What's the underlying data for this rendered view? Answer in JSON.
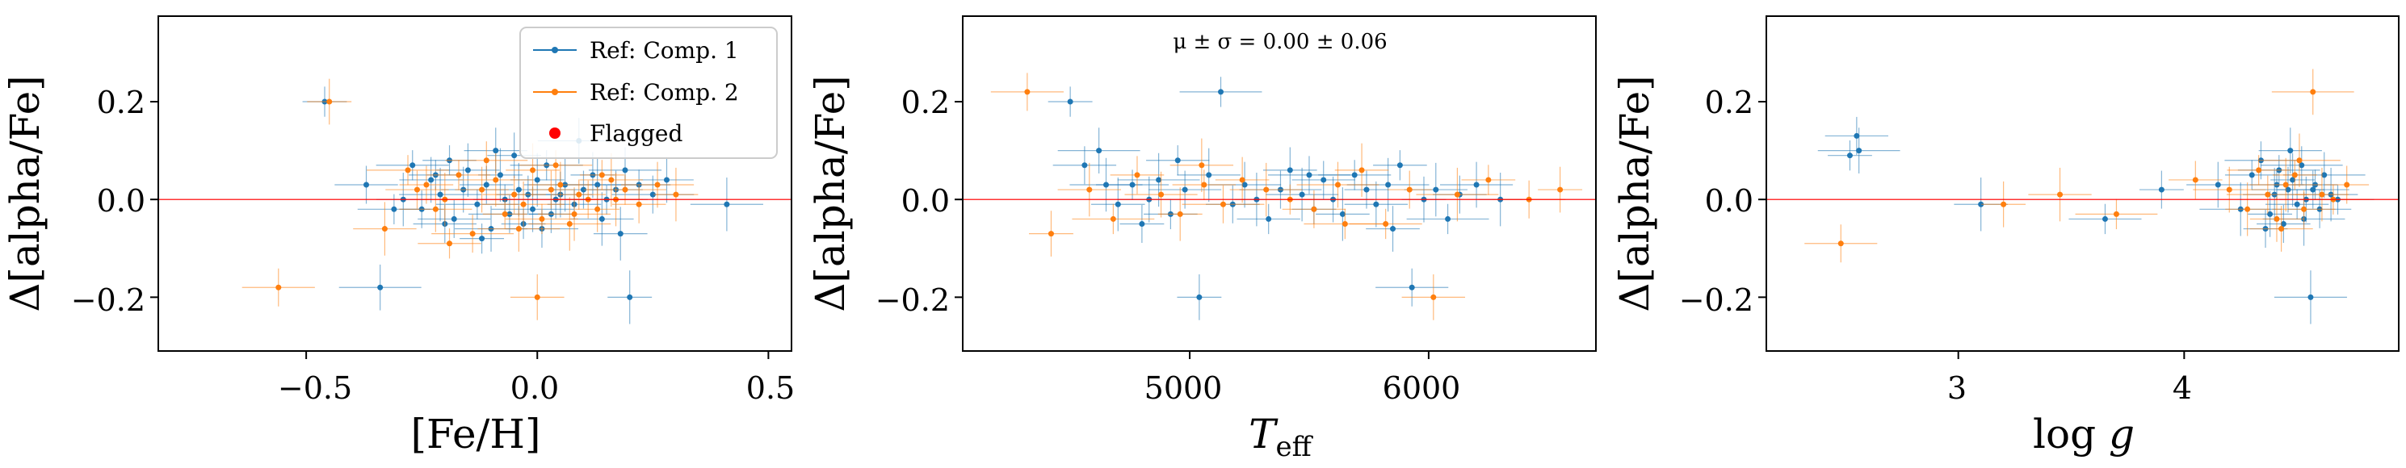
{
  "chart_data": [
    {
      "type": "scatter",
      "title": "",
      "xlabel": "[Fe/H]",
      "ylabel": "Δ[alpha/Fe]",
      "xlim": [
        -0.82,
        0.55
      ],
      "ylim": [
        -0.31,
        0.375
      ],
      "xticks": [
        -0.5,
        0.0,
        0.5
      ],
      "xtick_labels": [
        "−0.5",
        "0.0",
        "0.5"
      ],
      "yticks": [
        -0.2,
        0.0,
        0.2
      ],
      "ytick_labels": [
        "−0.2",
        "0.0",
        "0.2"
      ],
      "reference_line": 0,
      "legend": {
        "location": "top-right",
        "entries": [
          {
            "label": "Ref: Comp. 1",
            "color": "#1f77b4"
          },
          {
            "label": "Ref: Comp. 2",
            "color": "#ff7f0e"
          },
          {
            "label": "Flagged",
            "color": "#ff0000"
          }
        ]
      },
      "series": [
        {
          "name": "Ref: Comp. 1",
          "color": "#1f77b4",
          "x": [
            -0.46,
            -0.37,
            -0.34,
            -0.29,
            -0.27,
            -0.25,
            -0.23,
            -0.21,
            -0.19,
            -0.18,
            -0.16,
            -0.15,
            -0.13,
            -0.11,
            -0.1,
            -0.08,
            -0.07,
            -0.06,
            -0.05,
            -0.04,
            -0.03,
            -0.02,
            -0.01,
            0.0,
            0.02,
            0.03,
            0.05,
            0.06,
            0.08,
            0.1,
            0.12,
            0.14,
            0.15,
            0.17,
            0.19,
            0.2,
            0.22,
            0.25,
            0.28,
            0.41,
            -0.12,
            -0.2,
            0.09,
            0.18,
            -0.31,
            0.04,
            -0.09,
            0.13,
            -0.22,
            0.01
          ],
          "y": [
            0.2,
            0.03,
            -0.18,
            0.0,
            0.07,
            -0.02,
            0.04,
            0.01,
            0.08,
            -0.04,
            0.02,
            0.06,
            -0.01,
            0.03,
            -0.06,
            0.05,
            0.0,
            -0.03,
            0.09,
            0.02,
            -0.05,
            0.01,
            -0.02,
            0.04,
            0.07,
            -0.03,
            0.01,
            0.03,
            -0.01,
            0.02,
            0.05,
            -0.04,
            0.0,
            0.02,
            0.06,
            -0.2,
            0.03,
            0.01,
            0.04,
            -0.01,
            -0.08,
            -0.05,
            0.12,
            -0.07,
            -0.02,
            0.0,
            0.1,
            0.03,
            0.05,
            -0.06
          ]
        },
        {
          "name": "Ref: Comp. 2",
          "color": "#ff7f0e",
          "x": [
            -0.56,
            -0.45,
            -0.33,
            -0.28,
            -0.24,
            -0.22,
            -0.2,
            -0.17,
            -0.14,
            -0.12,
            -0.09,
            -0.07,
            -0.05,
            -0.03,
            -0.01,
            0.01,
            0.03,
            0.05,
            0.07,
            0.09,
            0.11,
            0.13,
            0.16,
            0.19,
            0.22,
            0.26,
            0.3,
            -0.19,
            -0.11,
            0.0,
            0.08,
            0.14,
            -0.26,
            -0.04,
            0.17,
            0.04
          ],
          "y": [
            -0.18,
            0.2,
            -0.06,
            0.06,
            0.03,
            -0.02,
            0.0,
            0.05,
            -0.07,
            0.02,
            0.04,
            -0.03,
            0.01,
            -0.01,
            0.06,
            -0.04,
            0.02,
            0.03,
            -0.05,
            0.01,
            0.0,
            -0.02,
            0.04,
            0.02,
            -0.01,
            0.03,
            0.01,
            -0.09,
            0.08,
            -0.2,
            -0.03,
            0.05,
            0.02,
            -0.06,
            0.0,
            0.07
          ]
        },
        {
          "name": "Flagged",
          "color": "#ff0000",
          "x": [],
          "y": []
        }
      ]
    },
    {
      "type": "scatter",
      "title": "",
      "xlabel": "T_eff",
      "ylabel": "Δ[alpha/Fe]",
      "annotation": "μ ± σ = 0.00 ± 0.06",
      "xlim": [
        4050,
        6700
      ],
      "ylim": [
        -0.31,
        0.375
      ],
      "xticks": [
        5000,
        6000
      ],
      "xtick_labels": [
        "5000",
        "6000"
      ],
      "yticks": [
        -0.2,
        0.0,
        0.2
      ],
      "ytick_labels": [
        "−0.2",
        "0.0",
        "0.2"
      ],
      "reference_line": 0,
      "series": [
        {
          "name": "Ref: Comp. 1",
          "color": "#1f77b4",
          "x": [
            4500,
            4560,
            4620,
            4700,
            4760,
            4800,
            4830,
            4870,
            4920,
            4980,
            5040,
            5080,
            5130,
            5180,
            5230,
            5280,
            5330,
            5380,
            5420,
            5470,
            5520,
            5560,
            5600,
            5640,
            5690,
            5740,
            5780,
            5830,
            5880,
            5930,
            5980,
            6030,
            6080,
            6130,
            6200,
            6300,
            4950,
            5500,
            5850,
            4650
          ],
          "y": [
            0.2,
            0.07,
            0.1,
            -0.01,
            0.03,
            -0.05,
            0.0,
            0.04,
            -0.03,
            0.02,
            -0.2,
            0.05,
            0.22,
            -0.01,
            0.03,
            0.0,
            -0.04,
            0.02,
            0.06,
            0.01,
            -0.02,
            0.04,
            0.0,
            -0.03,
            0.05,
            0.02,
            -0.01,
            0.03,
            0.07,
            -0.18,
            0.0,
            0.02,
            -0.04,
            0.01,
            0.03,
            0.0,
            0.08,
            0.05,
            -0.06,
            0.03
          ]
        },
        {
          "name": "Ref: Comp. 2",
          "color": "#ff7f0e",
          "x": [
            4320,
            4420,
            4580,
            4680,
            4780,
            4880,
            4960,
            5060,
            5140,
            5220,
            5320,
            5420,
            5520,
            5620,
            5720,
            5820,
            5920,
            6020,
            6120,
            6250,
            6420,
            6550,
            5050,
            5650
          ],
          "y": [
            0.22,
            -0.07,
            0.02,
            -0.04,
            0.05,
            0.01,
            -0.03,
            0.03,
            -0.01,
            0.04,
            0.02,
            0.0,
            -0.02,
            0.03,
            0.06,
            -0.05,
            0.02,
            -0.2,
            0.01,
            0.04,
            0.0,
            0.02,
            0.07,
            -0.05
          ]
        }
      ]
    },
    {
      "type": "scatter",
      "title": "",
      "xlabel": "log g",
      "ylabel": "Δ[alpha/Fe]",
      "xlim": [
        2.15,
        4.95
      ],
      "ylim": [
        -0.31,
        0.375
      ],
      "xticks": [
        3,
        4
      ],
      "xtick_labels": [
        "3",
        "4"
      ],
      "yticks": [
        -0.2,
        0.0,
        0.2
      ],
      "ytick_labels": [
        "−0.2",
        "0.0",
        "0.2"
      ],
      "reference_line": 0,
      "series": [
        {
          "name": "Ref: Comp. 1",
          "color": "#1f77b4",
          "x": [
            2.52,
            2.55,
            2.56,
            3.1,
            3.65,
            3.9,
            4.15,
            4.25,
            4.3,
            4.34,
            4.38,
            4.4,
            4.42,
            4.44,
            4.46,
            4.48,
            4.5,
            4.52,
            4.54,
            4.56,
            4.58,
            4.6,
            4.62,
            4.65,
            4.68,
            4.36,
            4.47,
            4.53,
            4.41,
            4.57
          ],
          "y": [
            0.09,
            0.13,
            0.1,
            -0.01,
            -0.04,
            0.02,
            0.03,
            -0.02,
            0.05,
            0.08,
            -0.03,
            0.01,
            0.06,
            -0.05,
            0.02,
            0.04,
            -0.01,
            0.07,
            0.0,
            -0.2,
            0.03,
            -0.02,
            0.05,
            0.01,
            0.0,
            -0.06,
            0.1,
            -0.04,
            0.03,
            0.02
          ]
        },
        {
          "name": "Ref: Comp. 2",
          "color": "#ff7f0e",
          "x": [
            2.48,
            3.2,
            3.45,
            3.7,
            4.05,
            4.2,
            4.28,
            4.33,
            4.37,
            4.41,
            4.45,
            4.49,
            4.53,
            4.57,
            4.61,
            4.66,
            4.72,
            4.43,
            4.51
          ],
          "y": [
            -0.09,
            -0.01,
            0.01,
            -0.03,
            0.04,
            0.02,
            -0.02,
            0.06,
            0.01,
            -0.04,
            0.03,
            0.05,
            -0.02,
            0.22,
            0.01,
            0.0,
            0.03,
            -0.06,
            0.08
          ]
        }
      ]
    }
  ]
}
